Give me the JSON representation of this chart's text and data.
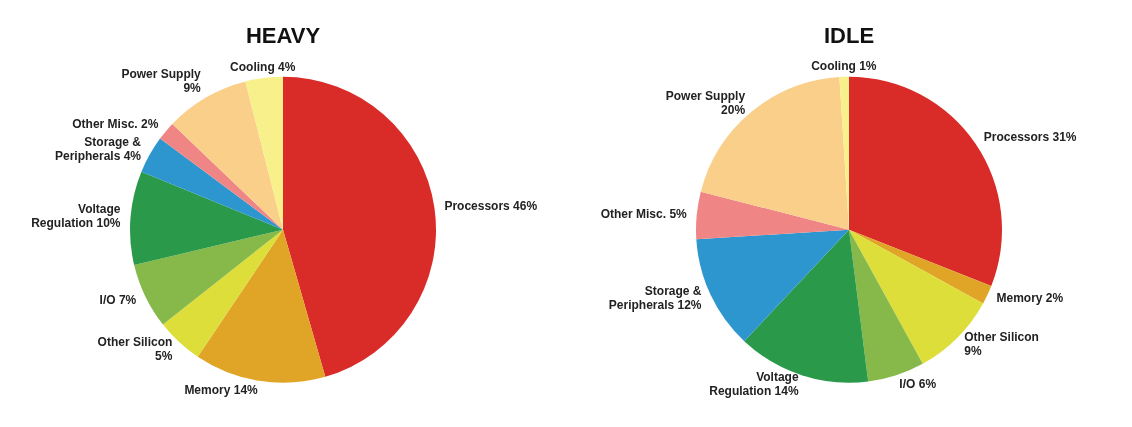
{
  "chart_data": [
    {
      "type": "pie",
      "title": "HEAVY",
      "categories": [
        "Processors",
        "Memory",
        "Other Silicon",
        "I/O",
        "Voltage Regulation",
        "Storage & Peripherals",
        "Other Misc.",
        "Power Supply",
        "Cooling"
      ],
      "values": [
        46,
        14,
        5,
        7,
        10,
        4,
        2,
        9,
        4
      ],
      "value_labels": [
        "46%",
        "14%",
        "5%",
        "7%",
        "10%",
        "4%",
        "2%",
        "9%",
        "4%"
      ],
      "colors": [
        "#d92b27",
        "#e0a526",
        "#dede3a",
        "#86b94a",
        "#2a9a4a",
        "#2e96cf",
        "#f08585",
        "#f9cf8a",
        "#f8f08a"
      ],
      "legend": false
    },
    {
      "type": "pie",
      "title": "IDLE",
      "categories": [
        "Processors",
        "Memory",
        "Other Silicon",
        "I/O",
        "Voltage Regulation",
        "Storage & Peripherals",
        "Other Misc.",
        "Power Supply",
        "Cooling"
      ],
      "values": [
        31,
        2,
        9,
        6,
        14,
        12,
        5,
        20,
        1
      ],
      "value_labels": [
        "31%",
        "2%",
        "9%",
        "6%",
        "14%",
        "12%",
        "5%",
        "20%",
        "1%"
      ],
      "colors": [
        "#d92b27",
        "#e0a526",
        "#dede3a",
        "#86b94a",
        "#2a9a4a",
        "#2e96cf",
        "#f08585",
        "#f9cf8a",
        "#f8f08a"
      ],
      "legend": false
    }
  ]
}
